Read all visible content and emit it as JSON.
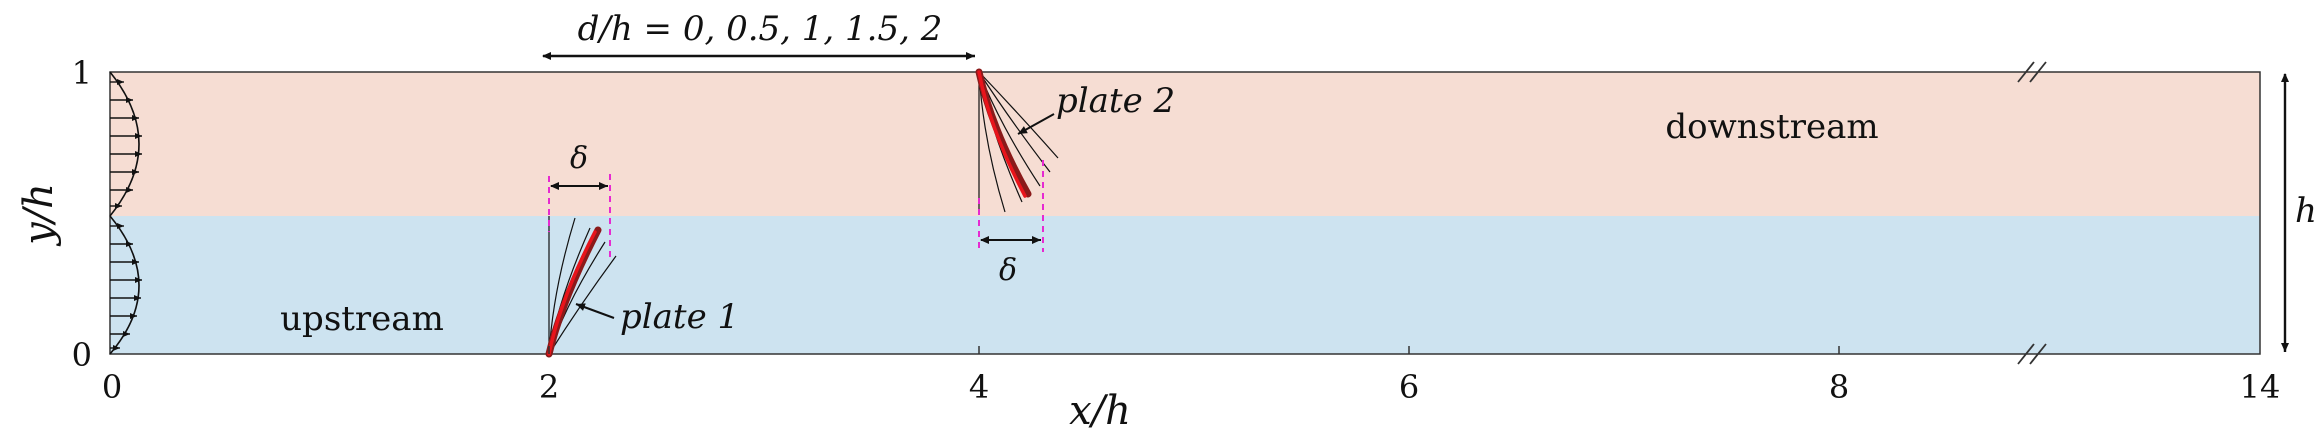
{
  "axes": {
    "x_label": "x/h",
    "y_label": "y/h",
    "x_ticks": [
      "0",
      "2",
      "4",
      "6",
      "8",
      "14"
    ],
    "y_ticks": [
      "0",
      "1"
    ]
  },
  "annotations": {
    "d_range": "d/h = 0, 0.5, 1, 1.5, 2",
    "delta_symbol": "δ",
    "height_symbol": "h",
    "plate1": "plate 1",
    "plate2": "plate 2",
    "region_upstream": "upstream",
    "region_downstream": "downstream"
  },
  "colors": {
    "downstream_fill": "#f6ddd3",
    "upstream_fill": "#cde3f0",
    "plate_red": "#e8141b",
    "plate_dark": "#8b1a1a",
    "marker_magenta": "#e62ad1",
    "line": "#111111"
  }
}
